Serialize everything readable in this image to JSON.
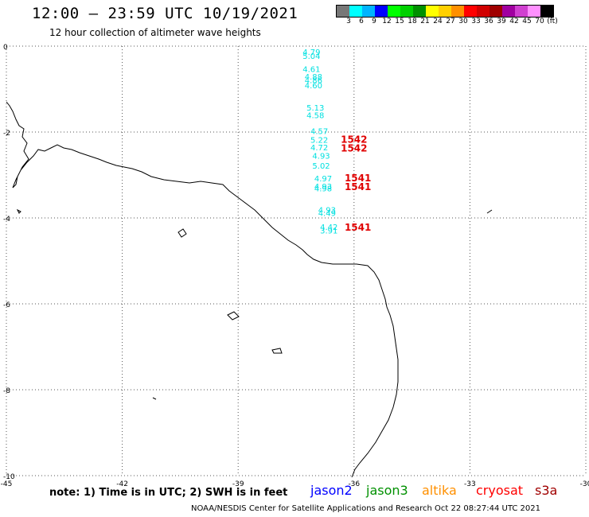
{
  "title": "12:00 – 23:59 UTC 10/19/2021",
  "subtitle": "12 hour collection of altimeter wave heights",
  "legend": {
    "colors": [
      "#777777",
      "#00ffff",
      "#00b4ff",
      "#0000ff",
      "#00ff00",
      "#00d000",
      "#009000",
      "#ffff00",
      "#ffd000",
      "#ff9000",
      "#ff0000",
      "#d00000",
      "#a00000",
      "#a000a0",
      "#d040d0",
      "#ff90ff",
      "#000000"
    ],
    "labels": [
      "3",
      "6",
      "9",
      "12",
      "15",
      "18",
      "21",
      "24",
      "27",
      "30",
      "33",
      "36",
      "39",
      "42",
      "45",
      "70",
      "(ft)"
    ]
  },
  "axes": {
    "x_ticks": [
      "-45",
      "-42",
      "-39",
      "-36",
      "-33",
      "-30"
    ],
    "y_ticks": [
      "0",
      "-2",
      "-4",
      "-6",
      "-8",
      "-10"
    ],
    "x_range": [
      -45,
      -30
    ],
    "y_range": [
      -10,
      0
    ]
  },
  "observations": [
    {
      "lon": -37.1,
      "lat": -0.2,
      "label": "4.79",
      "color": "#00e0e0"
    },
    {
      "lon": -37.1,
      "lat": -0.3,
      "label": "5.04",
      "color": "#00e0e0"
    },
    {
      "lon": -37.1,
      "lat": -0.6,
      "label": "4.61",
      "color": "#00e0e0"
    },
    {
      "lon": -37.05,
      "lat": -0.78,
      "label": "4.88",
      "color": "#00e0e0"
    },
    {
      "lon": -37.05,
      "lat": -0.86,
      "label": "4.86",
      "color": "#00e0e0"
    },
    {
      "lon": -37.05,
      "lat": -0.98,
      "label": "4.60",
      "color": "#00e0e0"
    },
    {
      "lon": -37.0,
      "lat": -1.5,
      "label": "5.13",
      "color": "#00e0e0"
    },
    {
      "lon": -37.0,
      "lat": -1.68,
      "label": "4.58",
      "color": "#00e0e0"
    },
    {
      "lon": -36.9,
      "lat": -2.05,
      "label": "4.57",
      "color": "#00e0e0"
    },
    {
      "lon": -36.9,
      "lat": -2.25,
      "label": "5.22",
      "color": "#00e0e0"
    },
    {
      "lon": -36.9,
      "lat": -2.43,
      "label": "4.72",
      "color": "#00e0e0"
    },
    {
      "lon": -36.85,
      "lat": -2.62,
      "label": "4.93",
      "color": "#00e0e0"
    },
    {
      "lon": -36.85,
      "lat": -2.85,
      "label": "5.02",
      "color": "#00e0e0"
    },
    {
      "lon": -36.8,
      "lat": -3.15,
      "label": "4.97",
      "color": "#00e0e0"
    },
    {
      "lon": -36.8,
      "lat": -3.33,
      "label": "4.93",
      "color": "#00e0e0"
    },
    {
      "lon": -36.8,
      "lat": -3.38,
      "label": "4.98",
      "color": "#00e0e0"
    },
    {
      "lon": -36.7,
      "lat": -3.88,
      "label": "4.93",
      "color": "#00e0e0"
    },
    {
      "lon": -36.7,
      "lat": -3.95,
      "label": "4.49",
      "color": "#00e0e0"
    },
    {
      "lon": -36.65,
      "lat": -4.28,
      "label": "4.42",
      "color": "#00e0e0"
    },
    {
      "lon": -36.65,
      "lat": -4.36,
      "label": "3.91",
      "color": "#00e0e0"
    }
  ],
  "time_labels": [
    {
      "lon": -36.0,
      "lat": -2.25,
      "label": "1542",
      "color": "#e00000"
    },
    {
      "lon": -36.0,
      "lat": -2.45,
      "label": "1542",
      "color": "#e00000"
    },
    {
      "lon": -35.9,
      "lat": -3.15,
      "label": "1541",
      "color": "#e00000"
    },
    {
      "lon": -35.9,
      "lat": -3.35,
      "label": "1541",
      "color": "#e00000"
    },
    {
      "lon": -35.9,
      "lat": -4.3,
      "label": "1541",
      "color": "#e00000"
    }
  ],
  "note": "note: 1) Time is in UTC; 2) SWH is in feet",
  "satellites": [
    {
      "name": "jason2",
      "color": "#0000ff"
    },
    {
      "name": "jason3",
      "color": "#009000"
    },
    {
      "name": "altika",
      "color": "#ff9000"
    },
    {
      "name": "cryosat",
      "color": "#ff0000"
    },
    {
      "name": "s3a",
      "color": "#a00000"
    }
  ],
  "credit": "NOAA/NESDIS Center for Satellite Applications and Research    Oct 22 08:27:44 UTC 2021"
}
